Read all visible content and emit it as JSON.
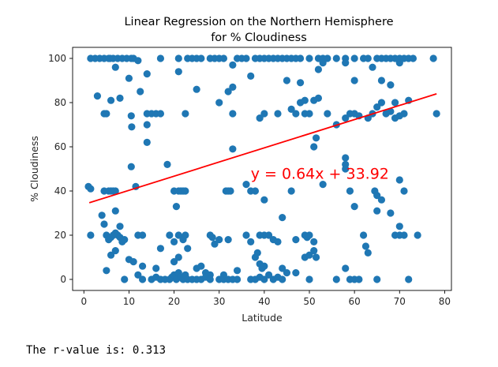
{
  "chart_data": {
    "type": "scatter",
    "title": [
      "Linear Regression on the Northern Hemisphere",
      "for % Cloudiness"
    ],
    "xlabel": "Latitude",
    "ylabel": "% Cloudiness",
    "xlim": [
      -2.5,
      81.5
    ],
    "ylim": [
      -5,
      105
    ],
    "xticks": [
      0,
      10,
      20,
      30,
      40,
      50,
      60,
      70,
      80
    ],
    "yticks": [
      0,
      20,
      40,
      60,
      80,
      100
    ],
    "grid": false,
    "colors": {
      "points": "#1f77b4",
      "regression_line": "#ff0000",
      "annotation": "#ff0000"
    },
    "regression": {
      "slope": 0.64,
      "intercept": 33.92,
      "x_range": [
        1.2,
        78.2
      ]
    },
    "annotation": {
      "text": "y = 0.64x + 33.92",
      "x": 37,
      "y": 48
    },
    "points": [
      [
        1.5,
        100
      ],
      [
        2.5,
        100
      ],
      [
        3.5,
        100
      ],
      [
        4.5,
        100
      ],
      [
        5.5,
        100
      ],
      [
        5.8,
        100
      ],
      [
        6.5,
        100
      ],
      [
        7.5,
        100
      ],
      [
        8.5,
        100
      ],
      [
        9.5,
        100
      ],
      [
        10.5,
        100
      ],
      [
        11,
        100
      ],
      [
        17,
        100
      ],
      [
        21,
        100
      ],
      [
        23,
        100
      ],
      [
        24,
        100
      ],
      [
        25,
        100
      ],
      [
        26,
        100
      ],
      [
        28,
        100
      ],
      [
        29,
        100
      ],
      [
        30,
        100
      ],
      [
        31,
        100
      ],
      [
        34,
        100
      ],
      [
        35,
        100
      ],
      [
        36,
        100
      ],
      [
        38,
        100
      ],
      [
        39,
        100
      ],
      [
        40,
        100
      ],
      [
        41,
        100
      ],
      [
        42,
        100
      ],
      [
        43,
        100
      ],
      [
        44,
        100
      ],
      [
        45,
        100
      ],
      [
        46,
        100
      ],
      [
        47,
        100
      ],
      [
        48,
        100
      ],
      [
        50,
        100
      ],
      [
        52,
        100
      ],
      [
        53,
        100
      ],
      [
        54,
        100
      ],
      [
        56,
        100
      ],
      [
        58,
        100
      ],
      [
        60,
        100
      ],
      [
        62,
        100
      ],
      [
        63,
        100
      ],
      [
        65,
        100
      ],
      [
        66,
        100
      ],
      [
        67,
        100
      ],
      [
        68,
        100
      ],
      [
        69,
        100
      ],
      [
        70,
        100
      ],
      [
        71,
        100
      ],
      [
        72,
        100
      ],
      [
        73,
        100
      ],
      [
        77.5,
        100
      ],
      [
        12,
        99
      ],
      [
        7,
        96
      ],
      [
        10,
        91
      ],
      [
        14,
        93
      ],
      [
        21,
        94
      ],
      [
        33,
        97
      ],
      [
        37,
        92
      ],
      [
        45,
        90
      ],
      [
        48,
        89
      ],
      [
        52,
        95
      ],
      [
        53,
        98
      ],
      [
        58,
        98
      ],
      [
        60,
        90
      ],
      [
        64,
        96
      ],
      [
        66,
        90
      ],
      [
        70,
        98
      ],
      [
        3,
        83
      ],
      [
        6,
        81
      ],
      [
        8,
        82
      ],
      [
        12.5,
        85
      ],
      [
        25,
        86
      ],
      [
        30,
        80
      ],
      [
        32,
        85
      ],
      [
        33,
        87
      ],
      [
        46,
        77
      ],
      [
        48,
        80
      ],
      [
        49,
        81
      ],
      [
        51,
        81
      ],
      [
        52,
        82
      ],
      [
        68,
        88
      ],
      [
        69,
        80
      ],
      [
        4.5,
        75
      ],
      [
        5,
        75
      ],
      [
        10.5,
        74
      ],
      [
        10.6,
        69
      ],
      [
        14,
        75
      ],
      [
        15,
        75
      ],
      [
        16,
        75
      ],
      [
        17,
        75
      ],
      [
        14,
        70
      ],
      [
        22.5,
        75
      ],
      [
        33,
        75
      ],
      [
        39,
        73
      ],
      [
        40,
        75
      ],
      [
        43,
        75
      ],
      [
        47,
        75
      ],
      [
        49,
        75
      ],
      [
        50,
        75
      ],
      [
        54,
        75
      ],
      [
        56,
        70
      ],
      [
        58,
        73
      ],
      [
        59,
        75
      ],
      [
        60,
        75
      ],
      [
        61,
        74
      ],
      [
        63,
        73
      ],
      [
        64,
        75
      ],
      [
        65,
        78
      ],
      [
        66,
        80
      ],
      [
        67,
        75
      ],
      [
        68,
        76
      ],
      [
        69,
        73
      ],
      [
        70,
        74
      ],
      [
        71,
        75
      ],
      [
        72,
        81
      ],
      [
        78.2,
        75
      ],
      [
        14,
        62
      ],
      [
        33,
        59
      ],
      [
        51,
        60
      ],
      [
        51.5,
        64
      ],
      [
        58,
        55
      ],
      [
        58,
        52
      ],
      [
        58,
        50
      ],
      [
        1,
        42
      ],
      [
        1.5,
        41
      ],
      [
        4.5,
        40
      ],
      [
        5.5,
        40
      ],
      [
        6,
        40
      ],
      [
        6.5,
        40
      ],
      [
        7,
        40
      ],
      [
        10.5,
        51
      ],
      [
        11.5,
        42
      ],
      [
        18.5,
        52
      ],
      [
        20,
        40
      ],
      [
        21,
        40
      ],
      [
        21.5,
        40
      ],
      [
        22,
        40
      ],
      [
        22.5,
        40
      ],
      [
        31.5,
        40
      ],
      [
        32,
        40
      ],
      [
        32.5,
        40
      ],
      [
        36,
        43
      ],
      [
        37,
        40
      ],
      [
        38,
        40
      ],
      [
        40,
        36
      ],
      [
        46,
        40
      ],
      [
        53,
        43
      ],
      [
        59,
        40
      ],
      [
        60,
        33
      ],
      [
        64.5,
        40
      ],
      [
        65,
        38
      ],
      [
        66,
        36
      ],
      [
        71,
        40
      ],
      [
        70,
        45
      ],
      [
        4,
        29
      ],
      [
        4.5,
        25
      ],
      [
        7,
        31
      ],
      [
        8,
        24
      ],
      [
        20.5,
        33
      ],
      [
        44,
        28
      ],
      [
        65,
        31
      ],
      [
        68,
        30
      ],
      [
        70,
        24
      ],
      [
        1.5,
        20
      ],
      [
        5,
        20
      ],
      [
        5.5,
        18
      ],
      [
        6,
        19
      ],
      [
        6.5,
        20
      ],
      [
        7,
        21
      ],
      [
        7.5,
        20
      ],
      [
        8,
        19
      ],
      [
        8.5,
        17
      ],
      [
        9,
        18
      ],
      [
        12,
        20
      ],
      [
        13,
        20
      ],
      [
        19,
        20
      ],
      [
        20,
        17
      ],
      [
        21,
        20
      ],
      [
        22,
        18
      ],
      [
        22.5,
        20
      ],
      [
        28,
        20
      ],
      [
        28.5,
        19
      ],
      [
        29,
        16
      ],
      [
        30,
        18
      ],
      [
        32,
        18
      ],
      [
        36,
        20
      ],
      [
        37,
        17
      ],
      [
        39,
        20
      ],
      [
        40,
        20
      ],
      [
        41,
        20
      ],
      [
        42,
        18
      ],
      [
        43,
        17
      ],
      [
        47,
        18
      ],
      [
        49,
        20
      ],
      [
        49.5,
        19
      ],
      [
        50,
        20
      ],
      [
        51,
        17
      ],
      [
        51.5,
        10
      ],
      [
        62,
        20
      ],
      [
        62.5,
        15
      ],
      [
        63,
        12
      ],
      [
        69,
        20
      ],
      [
        70,
        20
      ],
      [
        71,
        20
      ],
      [
        74,
        20
      ],
      [
        6,
        11
      ],
      [
        7,
        13
      ],
      [
        10,
        9
      ],
      [
        11,
        8
      ],
      [
        13,
        6
      ],
      [
        16,
        5
      ],
      [
        17,
        14
      ],
      [
        20,
        8
      ],
      [
        21,
        10
      ],
      [
        23,
        14
      ],
      [
        25,
        5
      ],
      [
        26,
        6
      ],
      [
        27,
        3
      ],
      [
        28,
        2
      ],
      [
        31,
        2
      ],
      [
        34,
        4
      ],
      [
        38,
        10
      ],
      [
        38.5,
        12
      ],
      [
        39,
        7
      ],
      [
        39.5,
        5
      ],
      [
        40,
        6
      ],
      [
        44,
        5
      ],
      [
        45,
        3
      ],
      [
        47,
        3
      ],
      [
        49,
        10
      ],
      [
        50,
        11
      ],
      [
        51,
        13
      ],
      [
        58,
        5
      ],
      [
        5,
        4
      ],
      [
        9,
        0
      ],
      [
        12,
        2
      ],
      [
        13,
        0
      ],
      [
        15,
        0
      ],
      [
        16,
        1
      ],
      [
        17,
        0
      ],
      [
        18,
        0
      ],
      [
        19,
        0
      ],
      [
        19.5,
        1
      ],
      [
        20,
        2
      ],
      [
        20.5,
        0
      ],
      [
        21,
        3
      ],
      [
        21.5,
        1
      ],
      [
        22,
        0
      ],
      [
        22.5,
        2
      ],
      [
        23,
        0
      ],
      [
        24,
        0
      ],
      [
        25,
        0
      ],
      [
        26,
        0
      ],
      [
        27,
        1
      ],
      [
        28,
        0
      ],
      [
        30,
        0
      ],
      [
        31,
        0
      ],
      [
        32,
        0
      ],
      [
        33,
        0
      ],
      [
        34,
        0
      ],
      [
        37,
        0
      ],
      [
        38,
        0
      ],
      [
        39,
        1
      ],
      [
        40,
        0
      ],
      [
        41,
        2
      ],
      [
        42,
        0
      ],
      [
        43,
        1
      ],
      [
        44,
        0
      ],
      [
        50,
        0
      ],
      [
        56,
        0
      ],
      [
        59,
        0
      ],
      [
        60,
        0
      ],
      [
        61,
        0
      ],
      [
        65,
        0
      ],
      [
        72,
        0
      ]
    ]
  },
  "output": {
    "r_value_text": "The r-value is: 0.313"
  }
}
